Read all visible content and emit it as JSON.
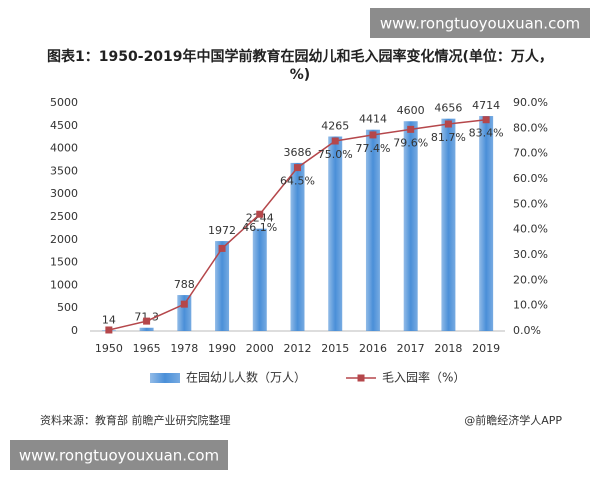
{
  "watermark": {
    "top": "www.rongtuoyouxuan.com",
    "bottom": "www.rongtuoyouxuan.com"
  },
  "chart_data": {
    "type": "bar",
    "title": "图表1：1950-2019年中国学前教育在园幼儿和毛入园率变化情况(单位：万人，%)",
    "categories": [
      "1950",
      "1965",
      "1978",
      "1990",
      "2000",
      "2012",
      "2015",
      "2016",
      "2017",
      "2018",
      "2019"
    ],
    "series": [
      {
        "name": "在园幼儿人数（万人）",
        "color": "#4a8fd8",
        "values": [
          14,
          71.3,
          788,
          1972,
          2244,
          3686,
          4265,
          4414,
          4600,
          4656,
          4714
        ]
      },
      {
        "name": "毛入园率（%）",
        "color": "#b5474b",
        "axis": "y2",
        "values": [
          0.4,
          3.9,
          10.6,
          32.6,
          46.1,
          64.5,
          75.0,
          77.4,
          79.6,
          81.7,
          83.4
        ],
        "value_labels": [
          null,
          null,
          null,
          null,
          "46.1%",
          "64.5%",
          "75.0%",
          "77.4%",
          "79.6%",
          "81.7%",
          "83.4%"
        ]
      }
    ],
    "ylim": [
      0,
      5000
    ],
    "yticks": [
      0,
      500,
      1000,
      1500,
      2000,
      2500,
      3000,
      3500,
      4000,
      4500,
      5000
    ],
    "y2lim": [
      0,
      90
    ],
    "y2ticks": [
      {
        "value": 0,
        "label": "0.0%"
      },
      {
        "value": 10,
        "label": "10.0%"
      },
      {
        "value": 20,
        "label": "20.0%"
      },
      {
        "value": 30,
        "label": "30.0%"
      },
      {
        "value": 40,
        "label": "40.0%"
      },
      {
        "value": 50,
        "label": "50.0%"
      },
      {
        "value": 60,
        "label": "60.0%"
      },
      {
        "value": 70,
        "label": "70.0%"
      },
      {
        "value": 80,
        "label": "80.0%"
      },
      {
        "value": 90,
        "label": "90.0%"
      }
    ],
    "grid": false,
    "legend": "bottom",
    "source": "资料来源：教育部 前瞻产业研究院整理",
    "credit": "@前瞻经济学人APP"
  }
}
